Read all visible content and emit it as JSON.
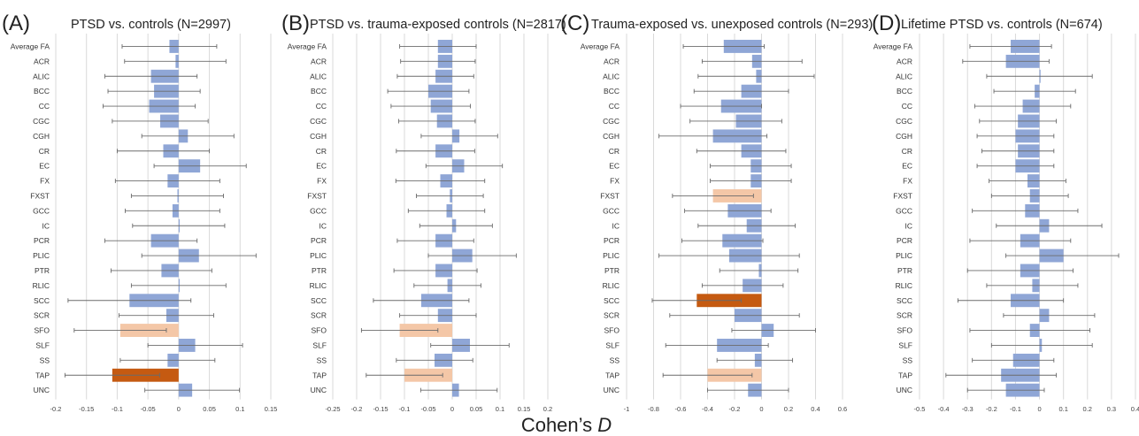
{
  "figure": {
    "xlabel_prefix": "Cohen’s ",
    "xlabel_italic": "D"
  },
  "colors": {
    "default_bar": "#8fa6d6",
    "light_highlight": "#f4c7a7",
    "dark_highlight": "#c55a11",
    "error_bar": "#6b6b6b",
    "grid": "#d9d9d9"
  },
  "chart_data": [
    {
      "type": "bar",
      "orientation": "horizontal",
      "letter": "(A)",
      "title": "PTSD vs. controls (N=2997)",
      "categories": [
        "Average FA",
        "ACR",
        "ALIC",
        "BCC",
        "CC",
        "CGC",
        "CGH",
        "CR",
        "EC",
        "FX",
        "FXST",
        "GCC",
        "IC",
        "PCR",
        "PLIC",
        "PTR",
        "RLIC",
        "SCC",
        "SCR",
        "SFO",
        "SLF",
        "SS",
        "TAP",
        "UNC"
      ],
      "values": [
        -0.015,
        -0.005,
        -0.045,
        -0.04,
        -0.048,
        -0.03,
        0.015,
        -0.025,
        0.035,
        -0.018,
        -0.002,
        -0.01,
        0.0,
        -0.045,
        0.033,
        -0.028,
        0.0,
        -0.08,
        -0.02,
        -0.095,
        0.027,
        -0.018,
        -0.108,
        0.022
      ],
      "ci_low": [
        -0.092,
        -0.088,
        -0.12,
        -0.115,
        -0.123,
        -0.108,
        -0.06,
        -0.1,
        -0.04,
        -0.103,
        -0.077,
        -0.087,
        -0.075,
        -0.12,
        -0.06,
        -0.11,
        -0.077,
        -0.18,
        -0.097,
        -0.17,
        -0.05,
        -0.095,
        -0.185,
        -0.055
      ],
      "ci_high": [
        0.062,
        0.077,
        0.03,
        0.035,
        0.027,
        0.048,
        0.09,
        0.05,
        0.11,
        0.067,
        0.073,
        0.067,
        0.075,
        0.03,
        0.126,
        0.054,
        0.077,
        0.02,
        0.057,
        -0.02,
        0.104,
        0.059,
        -0.031,
        0.099
      ],
      "bar_colors": [
        "default",
        "default",
        "default",
        "default",
        "default",
        "default",
        "default",
        "default",
        "default",
        "default",
        "default",
        "default",
        "default",
        "default",
        "default",
        "default",
        "default",
        "default",
        "default",
        "light",
        "default",
        "default",
        "dark",
        "default"
      ],
      "xlim": [
        -0.2,
        0.15
      ],
      "ticks": [
        -0.2,
        -0.15,
        -0.1,
        -0.05,
        0,
        0.05,
        0.1,
        0.15
      ],
      "tick_labels": [
        "-0.2",
        "-0.15",
        "-0.1",
        "-0.05",
        "0",
        "0.05",
        "0.1",
        "0.15"
      ],
      "grid": true
    },
    {
      "type": "bar",
      "orientation": "horizontal",
      "letter": "(B)",
      "title": "PTSD vs. trauma-exposed controls (N=2817)",
      "categories": [
        "Average FA",
        "ACR",
        "ALIC",
        "BCC",
        "CC",
        "CGC",
        "CGH",
        "CR",
        "EC",
        "FX",
        "FXST",
        "GCC",
        "IC",
        "PCR",
        "PLIC",
        "PTR",
        "RLIC",
        "SCC",
        "SCR",
        "SFO",
        "SLF",
        "SS",
        "TAP",
        "UNC"
      ],
      "values": [
        -0.03,
        -0.03,
        -0.035,
        -0.05,
        -0.045,
        -0.032,
        0.015,
        -0.035,
        0.025,
        -0.025,
        -0.005,
        -0.012,
        0.008,
        -0.035,
        0.042,
        -0.035,
        -0.01,
        -0.065,
        -0.03,
        -0.11,
        0.037,
        -0.037,
        -0.1,
        0.014
      ],
      "ci_low": [
        -0.11,
        -0.108,
        -0.115,
        -0.135,
        -0.128,
        -0.112,
        -0.065,
        -0.117,
        -0.055,
        -0.118,
        -0.075,
        -0.092,
        -0.068,
        -0.115,
        -0.05,
        -0.122,
        -0.08,
        -0.165,
        -0.11,
        -0.19,
        -0.045,
        -0.117,
        -0.18,
        -0.066
      ],
      "ci_high": [
        0.05,
        0.048,
        0.045,
        0.035,
        0.038,
        0.048,
        0.095,
        0.047,
        0.105,
        0.068,
        0.065,
        0.068,
        0.084,
        0.045,
        0.134,
        0.052,
        0.06,
        0.035,
        0.05,
        -0.03,
        0.119,
        0.043,
        -0.02,
        0.094
      ],
      "bar_colors": [
        "default",
        "default",
        "default",
        "default",
        "default",
        "default",
        "default",
        "default",
        "default",
        "default",
        "default",
        "default",
        "default",
        "default",
        "default",
        "default",
        "default",
        "default",
        "default",
        "light",
        "default",
        "default",
        "light",
        "default"
      ],
      "xlim": [
        -0.25,
        0.2
      ],
      "ticks": [
        -0.25,
        -0.2,
        -0.15,
        -0.1,
        -0.05,
        0,
        0.05,
        0.1,
        0.15,
        0.2
      ],
      "tick_labels": [
        "-0.25",
        "-0.2",
        "-0.15",
        "-0.1",
        "-0.05",
        "0",
        "0.05",
        "0.1",
        "0.15",
        "0.2"
      ],
      "grid": true
    },
    {
      "type": "bar",
      "orientation": "horizontal",
      "letter": "(C)",
      "title": "Trauma-exposed vs. unexposed controls (N=293)",
      "categories": [
        "Average FA",
        "ACR",
        "ALIC",
        "BCC",
        "CC",
        "CGC",
        "CGH",
        "CR",
        "EC",
        "FX",
        "FXST",
        "GCC",
        "IC",
        "PCR",
        "PLIC",
        "PTR",
        "RLIC",
        "SCC",
        "SCR",
        "SFO",
        "SLF",
        "SS",
        "TAP",
        "UNC"
      ],
      "values": [
        -0.28,
        -0.07,
        -0.04,
        -0.15,
        -0.3,
        -0.19,
        -0.36,
        -0.15,
        -0.08,
        -0.08,
        -0.36,
        -0.25,
        -0.11,
        -0.29,
        -0.24,
        -0.02,
        -0.14,
        -0.48,
        -0.2,
        0.09,
        -0.33,
        -0.05,
        -0.4,
        -0.1
      ],
      "ci_low": [
        -0.58,
        -0.44,
        -0.47,
        -0.5,
        -0.6,
        -0.53,
        -0.76,
        -0.48,
        -0.38,
        -0.38,
        -0.66,
        -0.57,
        -0.47,
        -0.59,
        -0.76,
        -0.31,
        -0.44,
        -0.81,
        -0.68,
        -0.22,
        -0.71,
        -0.33,
        -0.73,
        -0.4
      ],
      "ci_high": [
        0.02,
        0.3,
        0.39,
        0.2,
        0.0,
        0.15,
        0.04,
        0.18,
        0.22,
        0.22,
        -0.06,
        0.07,
        0.25,
        0.01,
        0.28,
        0.27,
        0.16,
        -0.15,
        0.28,
        0.4,
        0.05,
        0.23,
        -0.07,
        0.2
      ],
      "bar_colors": [
        "default",
        "default",
        "default",
        "default",
        "default",
        "default",
        "default",
        "default",
        "default",
        "default",
        "light",
        "default",
        "default",
        "default",
        "default",
        "default",
        "default",
        "dark",
        "default",
        "default",
        "default",
        "default",
        "light",
        "default"
      ],
      "xlim": [
        -1,
        0.6
      ],
      "ticks": [
        -1,
        -0.8,
        -0.6,
        -0.4,
        -0.2,
        0,
        0.2,
        0.4,
        0.6
      ],
      "tick_labels": [
        "-1",
        "-0.8",
        "-0.6",
        "-0.4",
        "-0.2",
        "0",
        "0.2",
        "0.4",
        "0.6"
      ],
      "grid": true
    },
    {
      "type": "bar",
      "orientation": "horizontal",
      "letter": "(D)",
      "title": "Lifetime PTSD vs. controls (N=674)",
      "categories": [
        "Average FA",
        "ACR",
        "ALIC",
        "BCC",
        "CC",
        "CGC",
        "CGH",
        "CR",
        "EC",
        "FX",
        "FXST",
        "GCC",
        "IC",
        "PCR",
        "PLIC",
        "PTR",
        "RLIC",
        "SCC",
        "SCR",
        "SFO",
        "SLF",
        "SS",
        "TAP",
        "UNC"
      ],
      "values": [
        -0.12,
        -0.14,
        0.0,
        -0.02,
        -0.07,
        -0.09,
        -0.1,
        -0.09,
        -0.1,
        -0.05,
        -0.04,
        -0.06,
        0.04,
        -0.08,
        0.1,
        -0.08,
        -0.03,
        -0.12,
        0.04,
        -0.04,
        0.01,
        -0.11,
        -0.16,
        -0.14
      ],
      "ci_low": [
        -0.29,
        -0.32,
        -0.22,
        -0.19,
        -0.27,
        -0.25,
        -0.26,
        -0.24,
        -0.26,
        -0.21,
        -0.2,
        -0.28,
        -0.18,
        -0.29,
        -0.14,
        -0.3,
        -0.22,
        -0.34,
        -0.15,
        -0.29,
        -0.2,
        -0.28,
        -0.39,
        -0.3
      ],
      "ci_high": [
        0.05,
        0.04,
        0.22,
        0.15,
        0.13,
        0.07,
        0.06,
        0.06,
        0.06,
        0.11,
        0.12,
        0.16,
        0.26,
        0.13,
        0.33,
        0.14,
        0.16,
        0.1,
        0.23,
        0.21,
        0.22,
        0.06,
        0.07,
        0.02
      ],
      "bar_colors": [
        "default",
        "default",
        "default",
        "default",
        "default",
        "default",
        "default",
        "default",
        "default",
        "default",
        "default",
        "default",
        "default",
        "default",
        "default",
        "default",
        "default",
        "default",
        "default",
        "default",
        "default",
        "default",
        "default",
        "default"
      ],
      "xlim": [
        -0.5,
        0.4
      ],
      "ticks": [
        -0.5,
        -0.4,
        -0.3,
        -0.2,
        -0.1,
        0,
        0.1,
        0.2,
        0.3,
        0.4
      ],
      "tick_labels": [
        "-0.5",
        "-0.4",
        "-0.3",
        "-0.2",
        "-0.1",
        "0",
        "0.1",
        "0.2",
        "0.3",
        "0.4"
      ],
      "grid": true
    }
  ]
}
